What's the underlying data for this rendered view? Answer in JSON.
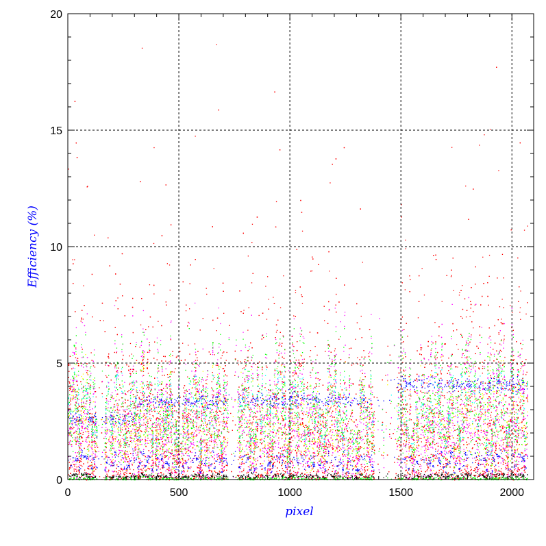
{
  "chart_data": {
    "type": "scatter",
    "title": "",
    "xlabel": "pixel",
    "ylabel": "Efficiency (%)",
    "xlim": [
      0,
      2098
    ],
    "ylim": [
      0,
      20
    ],
    "x_ticks": [
      0,
      500,
      1000,
      1500,
      2000
    ],
    "y_ticks": [
      0,
      5,
      10,
      15,
      20
    ],
    "grid": true,
    "legend": "none",
    "sparse_x_ranges": [
      [
        130,
        165
      ],
      [
        720,
        765
      ],
      [
        1380,
        1480
      ]
    ],
    "series": [
      {
        "name": "red",
        "color": "#ff0000",
        "count": 9000,
        "y_center": 2.5,
        "y_spread": 2.2,
        "tail_max": 20
      },
      {
        "name": "magenta",
        "color": "#ff00ff",
        "count": 4500,
        "y_center": 3.0,
        "y_spread": 1.6,
        "tail_max": 8
      },
      {
        "name": "green",
        "color": "#00ff00",
        "count": 2600,
        "y_center": 3.6,
        "y_spread": 1.2,
        "tail_max": 6.5
      },
      {
        "name": "yellow",
        "color": "#ffff00",
        "count": 1600,
        "y_center": 3.0,
        "y_spread": 1.1,
        "tail_max": 5.5
      },
      {
        "name": "cyan",
        "color": "#00ffff",
        "count": 900,
        "y_center": 3.7,
        "y_spread": 0.4,
        "tail_max": 4.8
      },
      {
        "name": "blue-upper",
        "color": "#0000ff",
        "count": 700,
        "y_center": 3.4,
        "y_spread": 0.15,
        "tail_max": 5
      },
      {
        "name": "blue-lower",
        "color": "#0000ff",
        "count": 700,
        "y_center": 0.95,
        "y_spread": 0.08,
        "tail_max": 1.5
      },
      {
        "name": "black",
        "color": "#000000",
        "count": 800,
        "y_center": 0.2,
        "y_spread": 0.04,
        "tail_max": 0.4
      },
      {
        "name": "green-floor",
        "color": "#00ff00",
        "count": 700,
        "y_center": 0.05,
        "y_spread": 0.05,
        "tail_max": 0.3
      }
    ]
  }
}
